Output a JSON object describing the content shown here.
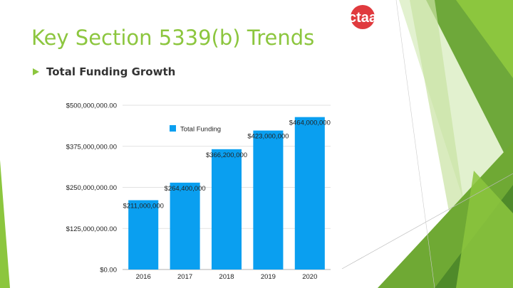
{
  "slide": {
    "title": "Key Section 5339(b) Trends",
    "bullet": "Total Funding Growth",
    "logo_text": "ctaa"
  },
  "colors": {
    "accent_green": "#8cc63e",
    "bar_blue": "#0a9ff0",
    "logo_red": "#e03a3e",
    "logo_blue": "#1e63b0"
  },
  "chart_data": {
    "type": "bar",
    "categories": [
      "2016",
      "2017",
      "2018",
      "2019",
      "2020"
    ],
    "values": [
      211000000,
      264400000,
      366200000,
      423000000,
      464000000
    ],
    "data_labels": [
      "$211,000,000",
      "$264,400,000",
      "$366,200,000",
      "$423,000,000",
      "$464,000,000"
    ],
    "yticks": [
      0,
      125000000,
      250000000,
      375000000,
      500000000
    ],
    "ytick_labels": [
      "$0.00",
      "$125,000,000.00",
      "$250,000,000.00",
      "$375,000,000.00",
      "$500,000,000.00"
    ],
    "ylim": [
      0,
      500000000
    ],
    "legend": [
      "Total Funding"
    ],
    "legend_position": "top-left",
    "grid": true,
    "title": "",
    "xlabel": "",
    "ylabel": ""
  }
}
